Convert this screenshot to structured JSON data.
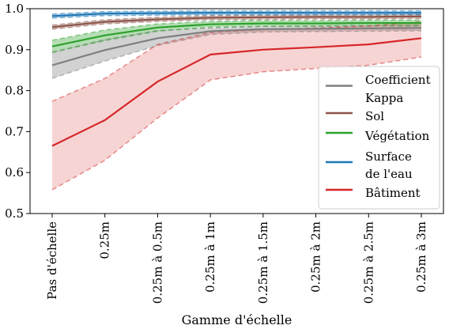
{
  "chart_data": {
    "type": "line",
    "title": "",
    "xlabel": "Gamme d'échelle",
    "ylabel": "",
    "ylim": [
      0.5,
      1.0
    ],
    "yticks": [
      0.5,
      0.6,
      0.7,
      0.8,
      0.9,
      1.0
    ],
    "ytick_labels": [
      "0.5",
      "0.6",
      "0.7",
      "0.8",
      "0.9",
      "1.0"
    ],
    "categories": [
      "Pas d'échelle",
      "0.25m",
      "0.25m à 0.5m",
      "0.25m à 1m",
      "0.25m à 1.5m",
      "0.25m à 2m",
      "0.25m à 2.5m",
      "0.25m à 3m"
    ],
    "grid": false,
    "legend_position": "right",
    "series": [
      {
        "name": "Coefficient Kappa",
        "legend_lines": [
          "Coefficient",
          "Kappa"
        ],
        "color": "#7f7f7f",
        "values": [
          0.862,
          0.899,
          0.928,
          0.945,
          0.95,
          0.951,
          0.952,
          0.953
        ],
        "lower": [
          0.83,
          0.872,
          0.91,
          0.937,
          0.943,
          0.944,
          0.945,
          0.946
        ],
        "upper": [
          0.894,
          0.925,
          0.947,
          0.953,
          0.957,
          0.958,
          0.959,
          0.96
        ]
      },
      {
        "name": "Sol",
        "legend_lines": [
          "Sol"
        ],
        "color": "#8c564b",
        "values": [
          0.955,
          0.968,
          0.974,
          0.978,
          0.979,
          0.98,
          0.98,
          0.981
        ],
        "lower": [
          0.95,
          0.963,
          0.969,
          0.973,
          0.974,
          0.975,
          0.975,
          0.976
        ],
        "upper": [
          0.96,
          0.973,
          0.979,
          0.983,
          0.984,
          0.985,
          0.985,
          0.986
        ]
      },
      {
        "name": "Végétation",
        "legend_lines": [
          "Végétation"
        ],
        "color": "#2ca02c",
        "values": [
          0.908,
          0.935,
          0.954,
          0.962,
          0.964,
          0.964,
          0.965,
          0.965
        ],
        "lower": [
          0.893,
          0.922,
          0.945,
          0.955,
          0.957,
          0.957,
          0.958,
          0.958
        ],
        "upper": [
          0.923,
          0.948,
          0.963,
          0.969,
          0.971,
          0.971,
          0.972,
          0.972
        ]
      },
      {
        "name": "Surface de l'eau",
        "legend_lines": [
          "Surface",
          "de l'eau"
        ],
        "color": "#1f77b4",
        "values": [
          0.982,
          0.988,
          0.989,
          0.99,
          0.99,
          0.99,
          0.99,
          0.99
        ],
        "lower": [
          0.977,
          0.983,
          0.984,
          0.985,
          0.985,
          0.985,
          0.985,
          0.985
        ],
        "upper": [
          0.987,
          0.993,
          0.994,
          0.995,
          0.995,
          0.995,
          0.995,
          0.995
        ]
      },
      {
        "name": "Bâtiment",
        "legend_lines": [
          "Bâtiment"
        ],
        "color": "#d62728",
        "values": [
          0.665,
          0.728,
          0.822,
          0.888,
          0.9,
          0.906,
          0.913,
          0.928
        ],
        "lower": [
          0.558,
          0.63,
          0.733,
          0.826,
          0.846,
          0.854,
          0.862,
          0.882
        ],
        "upper": [
          0.774,
          0.83,
          0.913,
          0.942,
          0.949,
          0.953,
          0.958,
          0.968
        ]
      }
    ]
  }
}
